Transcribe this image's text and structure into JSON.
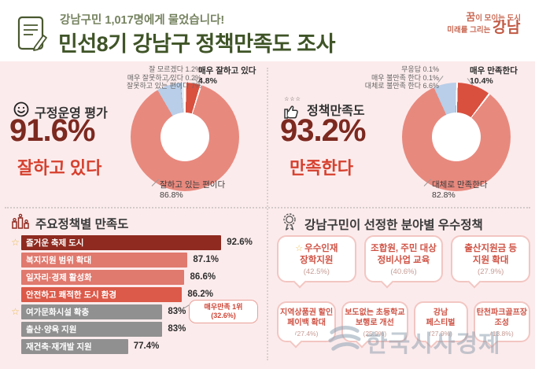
{
  "header": {
    "badge": "강남구민 1,017명에게 물었습니다!",
    "title": "민선8기 강남구 정책만족도 조사",
    "logo_dream": "꿈",
    "logo_line1_rest": "이 모이는 도시",
    "logo_line2": "미래를 그리는",
    "logo_brand": "강남"
  },
  "colors": {
    "background_pink": "#fcebec",
    "title_green": "#3f5427",
    "badge_green": "#75825f",
    "dark_red": "#7c2920",
    "accent_red": "#d6402e",
    "salmon": "#e8897e",
    "logo_coral": "#c96a55"
  },
  "gov": {
    "heading": "구정운영 평가",
    "value": "91.6%",
    "caption": "잘하고 있다",
    "label_top1": "잘 모르겠다 1.2%",
    "label_top2": "매우 잘못하고 있다 0.2%",
    "label_top3": "잘못하고 있는 편이다 7%",
    "label_side1": "매우 잘하고 있다",
    "label_side2": "4.8%",
    "label_main1": "잘하고 있는 편이다",
    "label_main2": "86.8%"
  },
  "policy": {
    "heading": "정책만족도",
    "value": "93.2%",
    "caption": "만족한다",
    "label_top1": "무응답 0.1%",
    "label_top2": "매우 불만족 한다 0.1%",
    "label_top3": "대체로 불만족 한다 6.6%",
    "label_side1": "매우 만족한다",
    "label_side2": "10.4%",
    "label_main1": "대체로 만족한다",
    "label_main2": "82.8%"
  },
  "bars_section": {
    "title": "주요정책별 만족도",
    "callout_line1": "매우만족 1위",
    "callout_line2": "(32.6%)"
  },
  "best_section": {
    "title": "강남구민이 선정한 분야별 우수정책"
  },
  "watermark": "한국시사경제",
  "chart_data": [
    {
      "type": "pie",
      "donut": true,
      "title": "구정운영 평가",
      "summary_value": 91.6,
      "summary_caption": "잘하고 있다",
      "slices": [
        {
          "label": "매우 잘하고 있다",
          "value": 4.8,
          "color": "#d9503f"
        },
        {
          "label": "잘하고 있는 편이다",
          "value": 86.8,
          "color": "#e8897e"
        },
        {
          "label": "잘못하고 있는 편이다",
          "value": 7.0,
          "color": "#b9cee8"
        },
        {
          "label": "매우 잘못하고 있다",
          "value": 0.2,
          "color": "#90a4bd"
        },
        {
          "label": "잘 모르겠다",
          "value": 1.2,
          "color": "#dde6f2"
        }
      ]
    },
    {
      "type": "pie",
      "donut": true,
      "title": "정책만족도",
      "summary_value": 93.2,
      "summary_caption": "만족한다",
      "slices": [
        {
          "label": "매우 만족한다",
          "value": 10.4,
          "color": "#d9503f"
        },
        {
          "label": "대체로 만족한다",
          "value": 82.8,
          "color": "#e8897e"
        },
        {
          "label": "대체로 불만족 한다",
          "value": 6.6,
          "color": "#b9cee8"
        },
        {
          "label": "매우 불만족 한다",
          "value": 0.1,
          "color": "#90a4bd"
        },
        {
          "label": "무응답",
          "value": 0.1,
          "color": "#dde6f2"
        }
      ]
    },
    {
      "type": "bar",
      "title": "주요정책별 만족도",
      "xlim": [
        60,
        100
      ],
      "rows": [
        {
          "label": "즐거운 축제 도시",
          "value": 92.6,
          "display": "92.6%",
          "star": "☆",
          "color": "#8e2a20"
        },
        {
          "label": "복지지원 범위 확대",
          "value": 87.1,
          "display": "87.1%",
          "star": "",
          "color": "#e0796e"
        },
        {
          "label": "일자리·경제 활성화",
          "value": 86.6,
          "display": "86.6%",
          "star": "",
          "color": "#e0796e"
        },
        {
          "label": "안전하고 쾌적한 도시 환경",
          "value": 86.2,
          "display": "86.2%",
          "star": "",
          "color": "#dc5a49"
        },
        {
          "label": "여가문화시설 확충",
          "value": 83,
          "display": "83%",
          "star": "☆",
          "color": "#909090",
          "note": "매우만족 1위 (32.6%)"
        },
        {
          "label": "출산·양육 지원",
          "value": 83,
          "display": "83%",
          "star": "",
          "color": "#909090"
        },
        {
          "label": "재건축·재개발 지원",
          "value": 77.4,
          "display": "77.4%",
          "star": "",
          "color": "#909090"
        }
      ]
    },
    {
      "type": "table",
      "title": "강남구민이 선정한 분야별 우수정책",
      "rows": [
        [
          {
            "star": "☆",
            "line1": "우수인재",
            "line2": "장학지원",
            "pct": "(42.5%)"
          },
          {
            "star": "",
            "line1": "조합원, 주민 대상",
            "line2": "정비사업 교육",
            "pct": "(40.6%)"
          },
          {
            "star": "",
            "line1": "출산지원금 등",
            "line2": "지원 확대",
            "pct": "(27.9%)"
          }
        ],
        [
          {
            "star": "",
            "line1": "지역상품권 할인",
            "line2": "페이백 확대",
            "pct": "(27.4%)"
          },
          {
            "star": "",
            "line1": "보도없는 초등학교",
            "line2": "보행로 개선",
            "pct": "(25.9%)"
          },
          {
            "star": "",
            "line1": "강남",
            "line2": "페스티벌",
            "pct": "(27.9%)"
          },
          {
            "star": "",
            "line1": "탄천파크골프장",
            "line2": "조성",
            "pct": "(13.8%)"
          }
        ]
      ]
    }
  ]
}
